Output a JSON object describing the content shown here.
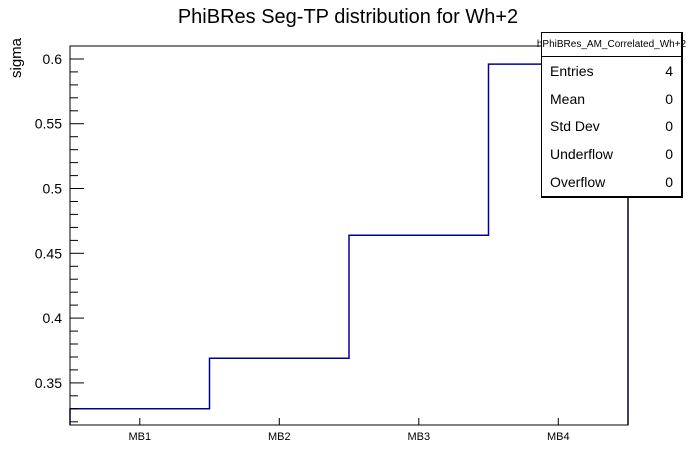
{
  "chart_data": {
    "type": "step-histogram",
    "title": "PhiBRes Seg-TP distribution for Wh+2",
    "ylabel": "sigma",
    "xlabel": "",
    "categories": [
      "MB1",
      "MB2",
      "MB3",
      "MB4"
    ],
    "values": [
      0.33,
      0.369,
      0.464,
      0.596
    ],
    "ylim": [
      0.3175,
      0.61
    ],
    "y_major_ticks": [
      0.35,
      0.4,
      0.45,
      0.5,
      0.55,
      0.6
    ],
    "y_minor_step": 0.01,
    "grid": false,
    "legend_position": "none",
    "line_color": "#000099",
    "frame_color": "#000000"
  },
  "stats_box": {
    "title": "hPhiBRes_AM_Correlated_Wh+2",
    "rows": [
      {
        "label": "Entries",
        "value": "4"
      },
      {
        "label": "Mean",
        "value": "0"
      },
      {
        "label": "Std Dev",
        "value": "0"
      },
      {
        "label": "Underflow",
        "value": "0"
      },
      {
        "label": "Overflow",
        "value": "0"
      }
    ]
  }
}
